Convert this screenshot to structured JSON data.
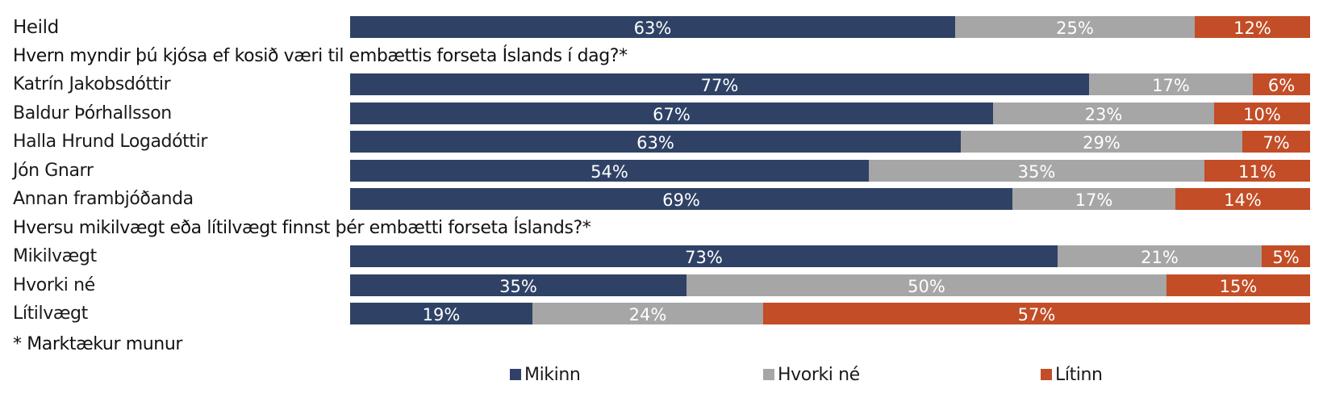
{
  "colors": {
    "mikinn": "#2f4266",
    "hvorki": "#a6a6a6",
    "litinn": "#c24d27"
  },
  "chart_data": {
    "type": "bar",
    "stacked": true,
    "orientation": "horizontal",
    "percent_scale": true,
    "series": [
      {
        "name": "Mikinn",
        "color": "#2f4266"
      },
      {
        "name": "Hvorki né",
        "color": "#a6a6a6"
      },
      {
        "name": "Lítinn",
        "color": "#c24d27"
      }
    ],
    "groups": [
      {
        "heading": "",
        "rows": [
          {
            "label": "Heild",
            "values": [
              63,
              25,
              12
            ],
            "display": [
              "63%",
              "25%",
              "12%"
            ]
          }
        ]
      },
      {
        "heading": "Hvern myndir þú kjósa ef kosið væri til embættis forseta Íslands í dag?*",
        "rows": [
          {
            "label": "Katrín Jakobsdóttir",
            "values": [
              77,
              17,
              6
            ],
            "display": [
              "77%",
              "17%",
              "6%"
            ]
          },
          {
            "label": "Baldur Þórhallsson",
            "values": [
              67,
              23,
              10
            ],
            "display": [
              "67%",
              "23%",
              "10%"
            ]
          },
          {
            "label": "Halla Hrund Logadóttir",
            "values": [
              63,
              29,
              7
            ],
            "display": [
              "63%",
              "29%",
              "7%"
            ]
          },
          {
            "label": "Jón Gnarr",
            "values": [
              54,
              35,
              11
            ],
            "display": [
              "54%",
              "35%",
              "11%"
            ]
          },
          {
            "label": "Annan frambjóðanda",
            "values": [
              69,
              17,
              14
            ],
            "display": [
              "69%",
              "17%",
              "14%"
            ]
          }
        ]
      },
      {
        "heading": "Hversu mikilvægt eða lítilvægt finnst þér embætti forseta Íslands?*",
        "rows": [
          {
            "label": "Mikilvægt",
            "values": [
              73,
              21,
              5
            ],
            "display": [
              "73%",
              "21%",
              "5%"
            ]
          },
          {
            "label": "Hvorki né",
            "values": [
              35,
              50,
              15
            ],
            "display": [
              "35%",
              "50%",
              "15%"
            ]
          },
          {
            "label": "Lítilvægt",
            "values": [
              19,
              24,
              57
            ],
            "display": [
              "19%",
              "24%",
              "57%"
            ]
          }
        ]
      }
    ],
    "note": "* Marktækur munur",
    "legend": [
      "Mikinn",
      "Hvorki né",
      "Lítinn"
    ],
    "legend_position": "bottom"
  }
}
